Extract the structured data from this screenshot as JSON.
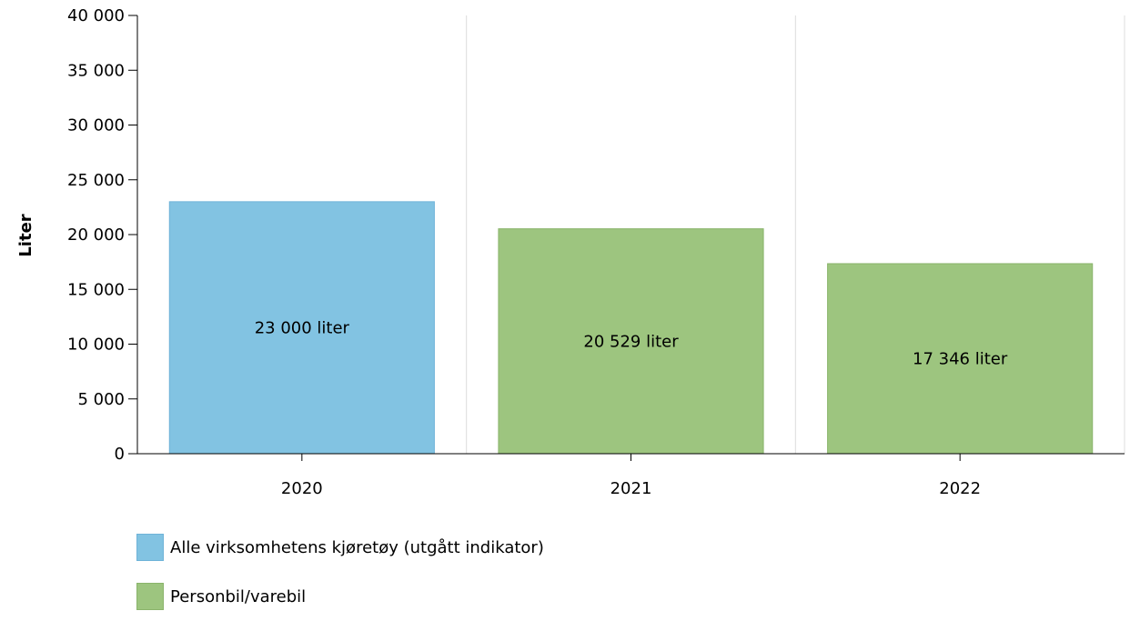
{
  "chart_data": {
    "type": "bar",
    "title": "",
    "xlabel": "",
    "ylabel": "Liter",
    "ylim": [
      0,
      40000
    ],
    "yticks": [
      "0",
      "5 000",
      "10 000",
      "15 000",
      "20 000",
      "25 000",
      "30 000",
      "35 000",
      "40 000"
    ],
    "ytick_values": [
      0,
      5000,
      10000,
      15000,
      20000,
      25000,
      30000,
      35000,
      40000
    ],
    "categories": [
      "2020",
      "2021",
      "2022"
    ],
    "values": [
      23000,
      20529,
      17346
    ],
    "bar_series": [
      0,
      1,
      1
    ],
    "data_labels": [
      "23 000 liter",
      "20 529 liter",
      "17 346 liter"
    ],
    "grid": true,
    "legend_position": "bottom-left",
    "series": [
      {
        "name": "Alle virksomhetens kjøretøy (utgått indikator)",
        "color": "#82c3e2",
        "border": "#6fb3d8"
      },
      {
        "name": "Personbil/varebil",
        "color": "#9dc57f",
        "border": "#8ab46b"
      }
    ]
  }
}
